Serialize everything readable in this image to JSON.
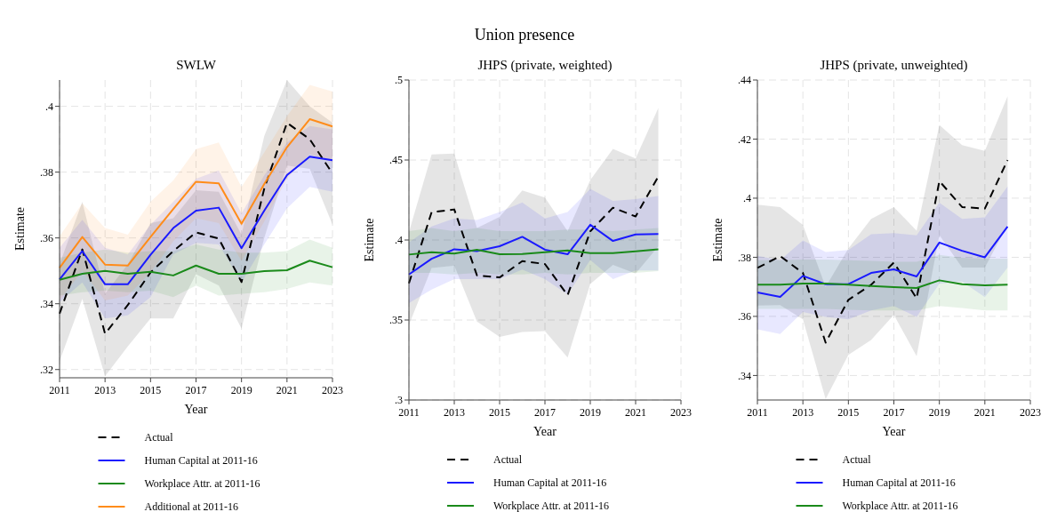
{
  "chart_data": [
    {
      "type": "line",
      "title": "SWLW",
      "xlabel": "Year",
      "ylabel": "Estimate",
      "annotations": [
        "Union presence"
      ],
      "grid": true,
      "legend": "bottom",
      "x": [
        2011,
        2012,
        2013,
        2014,
        2015,
        2016,
        2017,
        2018,
        2019,
        2020,
        2021,
        2022,
        2023
      ],
      "xlim": [
        2011,
        2023
      ],
      "xticks": [
        2011,
        2013,
        2015,
        2017,
        2019,
        2021,
        2023
      ],
      "ylim": [
        0.3175,
        0.408
      ],
      "yticks": [
        {
          "value": 0.32,
          "label": ".32"
        },
        {
          "value": 0.34,
          "label": ".34"
        },
        {
          "value": 0.36,
          "label": ".36"
        },
        {
          "value": 0.38,
          "label": ".38"
        },
        {
          "value": 0.4,
          "label": ".4"
        }
      ],
      "series": [
        {
          "name": "Actual",
          "color": "#000000",
          "line_style": "dashed",
          "values": [
            0.337,
            0.3565,
            0.3309,
            0.3396,
            0.3495,
            0.356,
            0.3617,
            0.3598,
            0.3466,
            0.375,
            0.395,
            0.39,
            0.3796
          ],
          "lower": [
            0.3225,
            0.3415,
            0.318,
            0.327,
            0.3355,
            0.3355,
            0.349,
            0.3455,
            0.3325,
            0.36,
            0.382,
            0.381,
            0.364
          ],
          "upper": [
            0.352,
            0.371,
            0.343,
            0.352,
            0.3645,
            0.366,
            0.3745,
            0.374,
            0.361,
            0.391,
            0.408,
            0.4,
            0.395
          ]
        },
        {
          "name": "Human Capital at 2011-16",
          "color": "#1a1aff",
          "line_style": "solid",
          "values": [
            0.3474,
            0.356,
            0.3459,
            0.3459,
            0.3549,
            0.363,
            0.3683,
            0.3692,
            0.3569,
            0.3683,
            0.3791,
            0.3847,
            0.3836
          ],
          "lower": [
            0.3405,
            0.3465,
            0.3355,
            0.3365,
            0.342,
            0.355,
            0.3585,
            0.358,
            0.3465,
            0.358,
            0.369,
            0.3755,
            0.374
          ],
          "upper": [
            0.357,
            0.3655,
            0.357,
            0.355,
            0.364,
            0.371,
            0.378,
            0.3805,
            0.3675,
            0.379,
            0.389,
            0.394,
            0.393
          ]
        },
        {
          "name": "Workplace Attr. at 2011-16",
          "color": "#1a8a1a",
          "line_style": "solid",
          "values": [
            0.3473,
            0.3491,
            0.35,
            0.3491,
            0.3497,
            0.3486,
            0.3516,
            0.3491,
            0.3491,
            0.3499,
            0.3502,
            0.3531,
            0.3511
          ],
          "lower": [
            0.3425,
            0.3435,
            0.344,
            0.3435,
            0.344,
            0.342,
            0.3455,
            0.3425,
            0.343,
            0.3435,
            0.3445,
            0.3465,
            0.3455
          ],
          "upper": [
            0.354,
            0.3555,
            0.3565,
            0.3555,
            0.356,
            0.356,
            0.358,
            0.3565,
            0.3555,
            0.3555,
            0.356,
            0.3595,
            0.357
          ]
        },
        {
          "name": "Additional at 2011-16",
          "color": "#ff8c1a",
          "line_style": "solid",
          "values": [
            0.3509,
            0.3603,
            0.3519,
            0.3516,
            0.3603,
            0.3688,
            0.3771,
            0.3766,
            0.3643,
            0.3764,
            0.3876,
            0.3961,
            0.3939
          ],
          "lower": [
            0.341,
            0.35,
            0.341,
            0.3425,
            0.3495,
            0.359,
            0.366,
            0.3645,
            0.353,
            0.365,
            0.378,
            0.3855,
            0.383
          ],
          "upper": [
            0.3605,
            0.3705,
            0.363,
            0.361,
            0.371,
            0.3775,
            0.387,
            0.389,
            0.3755,
            0.386,
            0.397,
            0.4065,
            0.4045
          ]
        }
      ]
    },
    {
      "type": "line",
      "title": "JHPS (private, weighted)",
      "xlabel": "Year",
      "ylabel": "Estimate",
      "grid": true,
      "legend": "bottom",
      "x": [
        2011,
        2012,
        2013,
        2014,
        2015,
        2016,
        2017,
        2018,
        2019,
        2020,
        2021,
        2022
      ],
      "xlim": [
        2011,
        2023
      ],
      "xticks": [
        2011,
        2013,
        2015,
        2017,
        2019,
        2021,
        2023
      ],
      "ylim": [
        0.3,
        0.5
      ],
      "yticks": [
        {
          "value": 0.3,
          "label": ".3"
        },
        {
          "value": 0.35,
          "label": ".35"
        },
        {
          "value": 0.4,
          "label": ".4"
        },
        {
          "value": 0.45,
          "label": ".45"
        },
        {
          "value": 0.5,
          "label": ".5"
        }
      ],
      "series": [
        {
          "name": "Actual",
          "color": "#000000",
          "line_style": "dashed",
          "values": [
            0.3729,
            0.4174,
            0.4191,
            0.3779,
            0.3766,
            0.3868,
            0.385,
            0.3655,
            0.4054,
            0.4202,
            0.4147,
            0.4397
          ],
          "lower": [
            0.347,
            0.3825,
            0.384,
            0.349,
            0.3395,
            0.3425,
            0.343,
            0.3265,
            0.3725,
            0.3845,
            0.379,
            0.396
          ],
          "upper": [
            0.405,
            0.4535,
            0.454,
            0.4075,
            0.4145,
            0.431,
            0.4265,
            0.4055,
            0.4375,
            0.457,
            0.451,
            0.4825
          ]
        },
        {
          "name": "Human Capital at 2011-16",
          "color": "#1a1aff",
          "line_style": "solid",
          "values": [
            0.3785,
            0.3883,
            0.3942,
            0.3931,
            0.3961,
            0.402,
            0.3939,
            0.3911,
            0.4095,
            0.3994,
            0.4035,
            0.4037
          ],
          "lower": [
            0.3605,
            0.369,
            0.3755,
            0.3755,
            0.3755,
            0.3815,
            0.3755,
            0.366,
            0.3875,
            0.3755,
            0.381,
            0.381
          ],
          "upper": [
            0.3985,
            0.4085,
            0.4135,
            0.4125,
            0.4175,
            0.4235,
            0.4135,
            0.4175,
            0.432,
            0.4245,
            0.4255,
            0.4275
          ]
        },
        {
          "name": "Workplace Attr. at 2011-16",
          "color": "#1a8a1a",
          "line_style": "solid",
          "values": [
            0.3909,
            0.3924,
            0.3915,
            0.3939,
            0.3911,
            0.3913,
            0.3924,
            0.3935,
            0.3918,
            0.3918,
            0.3929,
            0.3942
          ],
          "lower": [
            0.3795,
            0.3795,
            0.3785,
            0.3795,
            0.3785,
            0.3785,
            0.3795,
            0.3785,
            0.3795,
            0.3795,
            0.3795,
            0.3805
          ],
          "upper": [
            0.4055,
            0.4075,
            0.4055,
            0.4075,
            0.4055,
            0.4055,
            0.4055,
            0.4065,
            0.4065,
            0.4055,
            0.4065,
            0.4075
          ]
        }
      ]
    },
    {
      "type": "line",
      "title": "JHPS (private, unweighted)",
      "xlabel": "Year",
      "ylabel": "Estimate",
      "grid": true,
      "legend": "bottom",
      "x": [
        2011,
        2012,
        2013,
        2014,
        2015,
        2016,
        2017,
        2018,
        2019,
        2020,
        2021,
        2022
      ],
      "xlim": [
        2011,
        2023
      ],
      "xticks": [
        2011,
        2013,
        2015,
        2017,
        2019,
        2021,
        2023
      ],
      "ylim": [
        0.3317,
        0.44
      ],
      "yticks": [
        {
          "value": 0.34,
          "label": ".34"
        },
        {
          "value": 0.36,
          "label": ".36"
        },
        {
          "value": 0.38,
          "label": ".38"
        },
        {
          "value": 0.4,
          "label": ".4"
        },
        {
          "value": 0.42,
          "label": ".42"
        },
        {
          "value": 0.44,
          "label": ".44"
        }
      ],
      "series": [
        {
          "name": "Actual",
          "color": "#000000",
          "line_style": "dashed",
          "values": [
            0.3764,
            0.3804,
            0.3747,
            0.3511,
            0.3656,
            0.3707,
            0.3782,
            0.3661,
            0.4058,
            0.397,
            0.3965,
            0.4129
          ],
          "lower": [
            0.3637,
            0.3638,
            0.359,
            0.332,
            0.347,
            0.352,
            0.3605,
            0.3465,
            0.3875,
            0.3765,
            0.3765,
            0.391
          ],
          "upper": [
            0.3978,
            0.397,
            0.391,
            0.37,
            0.383,
            0.393,
            0.397,
            0.389,
            0.4248,
            0.418,
            0.416,
            0.4345
          ]
        },
        {
          "name": "Human Capital at 2011-16",
          "color": "#1a1aff",
          "line_style": "solid",
          "values": [
            0.3681,
            0.3666,
            0.3737,
            0.3709,
            0.3709,
            0.3747,
            0.3759,
            0.3735,
            0.385,
            0.3822,
            0.38,
            0.3904
          ],
          "lower": [
            0.3556,
            0.354,
            0.3615,
            0.3598,
            0.359,
            0.362,
            0.3635,
            0.3598,
            0.371,
            0.3718,
            0.3665,
            0.3765
          ],
          "upper": [
            0.3805,
            0.379,
            0.3857,
            0.3818,
            0.3825,
            0.3878,
            0.3882,
            0.3874,
            0.3985,
            0.393,
            0.3935,
            0.404
          ]
        },
        {
          "name": "Workplace Attr. at 2011-16",
          "color": "#1a8a1a",
          "line_style": "solid",
          "values": [
            0.3707,
            0.3707,
            0.3711,
            0.3711,
            0.3707,
            0.3703,
            0.3699,
            0.3696,
            0.3722,
            0.3709,
            0.3705,
            0.3707
          ],
          "lower": [
            0.3625,
            0.3625,
            0.3625,
            0.3625,
            0.3622,
            0.362,
            0.362,
            0.362,
            0.3635,
            0.3628,
            0.362,
            0.362
          ],
          "upper": [
            0.379,
            0.379,
            0.3792,
            0.3792,
            0.379,
            0.3788,
            0.3785,
            0.3785,
            0.3808,
            0.3798,
            0.3795,
            0.3795
          ]
        }
      ]
    }
  ]
}
